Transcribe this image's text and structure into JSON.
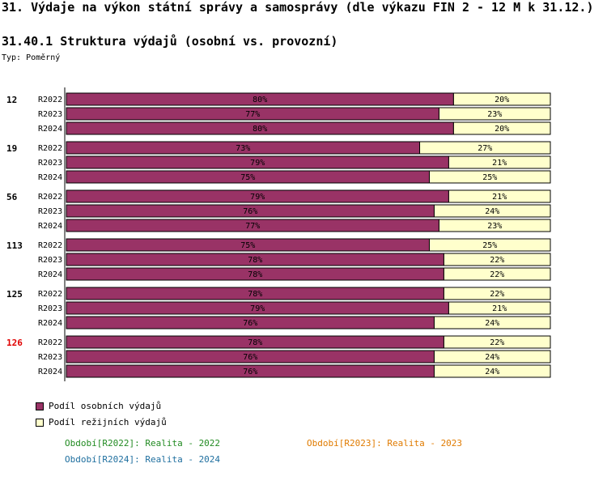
{
  "header": {
    "title": "31. Výdaje na výkon státní správy a samosprávy (dle výkazu FIN 2 - 12 M k 31.12.)",
    "subtitle": "31.40.1 Struktura výdajů (osobní vs. provozní)",
    "type_label": "Typ: Poměrný"
  },
  "colors": {
    "personal": "#993366",
    "operating": "#ffffcc",
    "highlight_group": "#e00000"
  },
  "chart_data": {
    "type": "bar",
    "stacked": true,
    "orientation": "horizontal",
    "unit": "%",
    "series_names": [
      "Podíl osobních výdajů",
      "Podíl režijních výdajů"
    ],
    "groups": [
      {
        "name": "12",
        "highlight": false,
        "rows": [
          {
            "period": "R2022",
            "personal": 80,
            "operating": 20
          },
          {
            "period": "R2023",
            "personal": 77,
            "operating": 23
          },
          {
            "period": "R2024",
            "personal": 80,
            "operating": 20
          }
        ]
      },
      {
        "name": "19",
        "highlight": false,
        "rows": [
          {
            "period": "R2022",
            "personal": 73,
            "operating": 27
          },
          {
            "period": "R2023",
            "personal": 79,
            "operating": 21
          },
          {
            "period": "R2024",
            "personal": 75,
            "operating": 25
          }
        ]
      },
      {
        "name": "56",
        "highlight": false,
        "rows": [
          {
            "period": "R2022",
            "personal": 79,
            "operating": 21
          },
          {
            "period": "R2023",
            "personal": 76,
            "operating": 24
          },
          {
            "period": "R2024",
            "personal": 77,
            "operating": 23
          }
        ]
      },
      {
        "name": "113",
        "highlight": false,
        "rows": [
          {
            "period": "R2022",
            "personal": 75,
            "operating": 25
          },
          {
            "period": "R2023",
            "personal": 78,
            "operating": 22
          },
          {
            "period": "R2024",
            "personal": 78,
            "operating": 22
          }
        ]
      },
      {
        "name": "125",
        "highlight": false,
        "rows": [
          {
            "period": "R2022",
            "personal": 78,
            "operating": 22
          },
          {
            "period": "R2023",
            "personal": 79,
            "operating": 21
          },
          {
            "period": "R2024",
            "personal": 76,
            "operating": 24
          }
        ]
      },
      {
        "name": "126",
        "highlight": true,
        "rows": [
          {
            "period": "R2022",
            "personal": 78,
            "operating": 22
          },
          {
            "period": "R2023",
            "personal": 76,
            "operating": 24
          },
          {
            "period": "R2024",
            "personal": 76,
            "operating": 24
          }
        ]
      }
    ]
  },
  "legend": {
    "personal_label": "Podíl osobních výdajů",
    "operating_label": "Podíl režijních výdajů"
  },
  "periods": [
    {
      "text": "Období[R2022]: Realita - 2022",
      "color": "#228b22"
    },
    {
      "text": "Období[R2023]: Realita - 2023",
      "color": "#e07b00"
    },
    {
      "text": "Období[R2024]: Realita - 2024",
      "color": "#1f6f9f"
    }
  ]
}
